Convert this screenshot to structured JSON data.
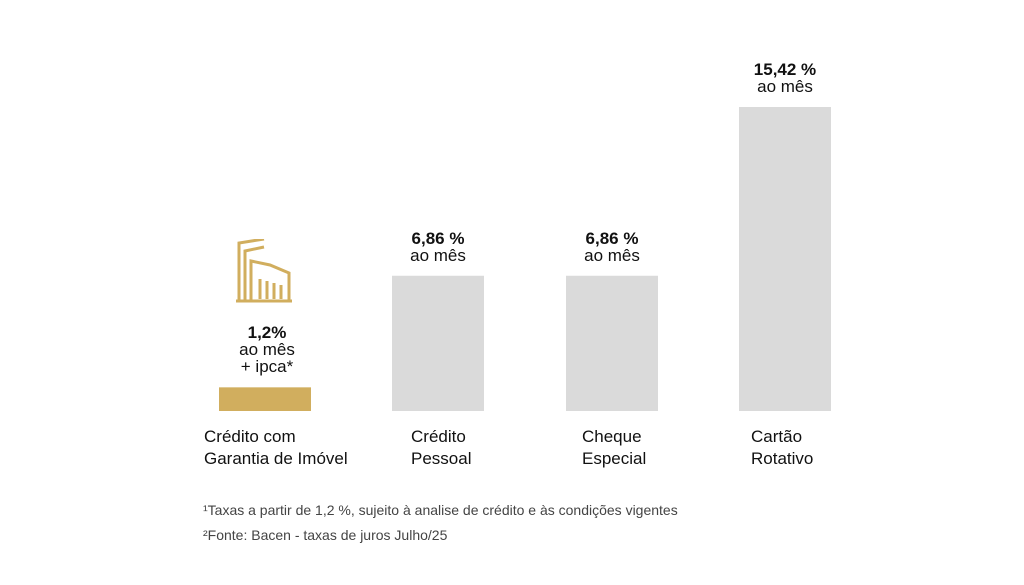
{
  "chart_data": {
    "type": "bar",
    "categories": [
      [
        "Crédito com",
        "Garantia de Imóvel"
      ],
      [
        "Crédito",
        "Pessoal"
      ],
      [
        "Cheque",
        "Especial"
      ],
      [
        "Cartão",
        "Rotativo"
      ]
    ],
    "values": [
      1.2,
      6.86,
      6.86,
      15.42
    ],
    "value_labels": [
      {
        "value": "1,2%",
        "unit": "ao mês",
        "extra": "+ ipca*"
      },
      {
        "value": "6,86 %",
        "unit": "ao mês",
        "extra": ""
      },
      {
        "value": "6,86 %",
        "unit": "ao mês",
        "extra": ""
      },
      {
        "value": "15,42 %",
        "unit": "ao mês",
        "extra": ""
      }
    ],
    "colors": [
      "#D1AE5E",
      "#DADADA",
      "#DADADA",
      "#DADADA"
    ],
    "ylim": [
      0,
      15.42
    ],
    "grid": false,
    "title": "",
    "xlabel": "",
    "ylabel": ""
  },
  "icon": {
    "name": "building-icon",
    "color": "#D1AE5E"
  },
  "footnotes": [
    "¹Taxas a partir de 1,2 %, sujeito à analise de crédito e às condições vigentes",
    "²Fonte: Bacen - taxas de juros Julho/25"
  ]
}
